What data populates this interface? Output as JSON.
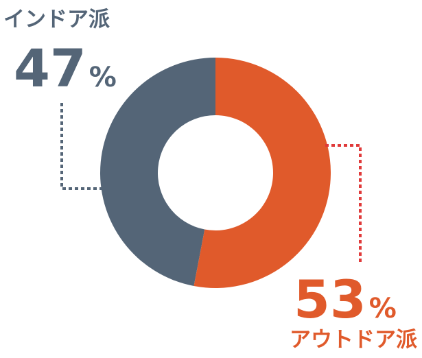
{
  "chart_data": {
    "type": "pie",
    "donut": true,
    "categories": [
      "アウトドア派",
      "インドア派"
    ],
    "values": [
      53,
      47
    ],
    "value_labels": [
      "53%",
      "47%"
    ],
    "colors": [
      "#e05a2b",
      "#546577"
    ]
  }
}
